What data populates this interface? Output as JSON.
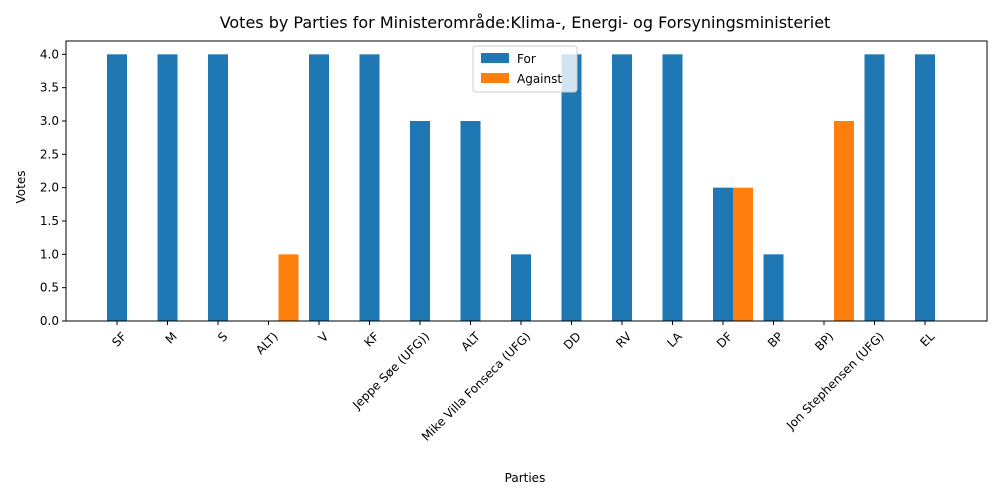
{
  "chart_data": {
    "type": "bar",
    "title": "Votes by Parties for Ministerområde:Klima-, Energi- og Forsyningsministeriet",
    "xlabel": "Parties",
    "ylabel": "Votes",
    "categories": [
      "SF",
      "M",
      "S",
      "ALT)",
      "V",
      "KF",
      "Jeppe Søe (UFG))",
      "ALT",
      "Mike Villa Fonseca (UFG)",
      "DD",
      "RV",
      "LA",
      "DF",
      "BP",
      "BP)",
      "Jon Stephensen (UFG)",
      "EL"
    ],
    "series": [
      {
        "name": "For",
        "color": "#1f77b4",
        "values": [
          4,
          4,
          4,
          0,
          4,
          4,
          3,
          3,
          1,
          4,
          4,
          4,
          2,
          1,
          0,
          4,
          4
        ]
      },
      {
        "name": "Against",
        "color": "#ff7f0e",
        "values": [
          0,
          0,
          0,
          1,
          0,
          0,
          0,
          0,
          0,
          0,
          0,
          0,
          2,
          0,
          3,
          0,
          0
        ]
      }
    ],
    "ylim": [
      0,
      4.2
    ],
    "yticks": [
      "0.0",
      "0.5",
      "1.0",
      "1.5",
      "2.0",
      "2.5",
      "3.0",
      "3.5",
      "4.0"
    ],
    "grid": false,
    "legend_position": "top-center"
  }
}
